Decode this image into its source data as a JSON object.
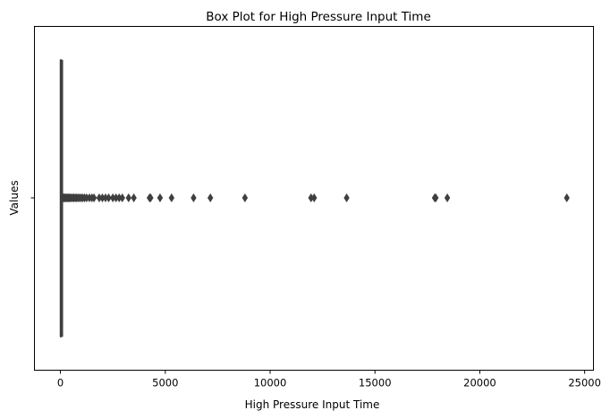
{
  "chart_data": {
    "type": "box",
    "orientation": "horizontal",
    "title": "Box Plot for High Pressure Input Time",
    "xlabel": "High Pressure Input Time",
    "ylabel": "Values",
    "xlim": [
      -1240,
      25420
    ],
    "xticks": [
      0,
      5000,
      10000,
      15000,
      20000,
      25000
    ],
    "xtick_labels": [
      "0",
      "5000",
      "10000",
      "15000",
      "20000",
      "25000"
    ],
    "ytick_labels": [
      ""
    ],
    "grid": false,
    "box": {
      "q1": 5,
      "median": 20,
      "q3": 40,
      "whisker_low": 0,
      "whisker_high": 95
    },
    "outliers": [
      100,
      120,
      150,
      180,
      210,
      250,
      290,
      330,
      370,
      410,
      460,
      520,
      580,
      640,
      700,
      760,
      830,
      900,
      980,
      1060,
      1150,
      1250,
      1380,
      1500,
      1600,
      1850,
      2000,
      2150,
      2300,
      2500,
      2650,
      2800,
      2950,
      3250,
      3500,
      4250,
      4300,
      4750,
      5300,
      6350,
      7150,
      8800,
      11950,
      12100,
      13650,
      17850,
      17900,
      18450,
      24150
    ],
    "colors": {
      "box_edge": "#3f3f3f",
      "outlier": "#3f3f3f",
      "axes": "#000000",
      "background": "#ffffff"
    }
  }
}
